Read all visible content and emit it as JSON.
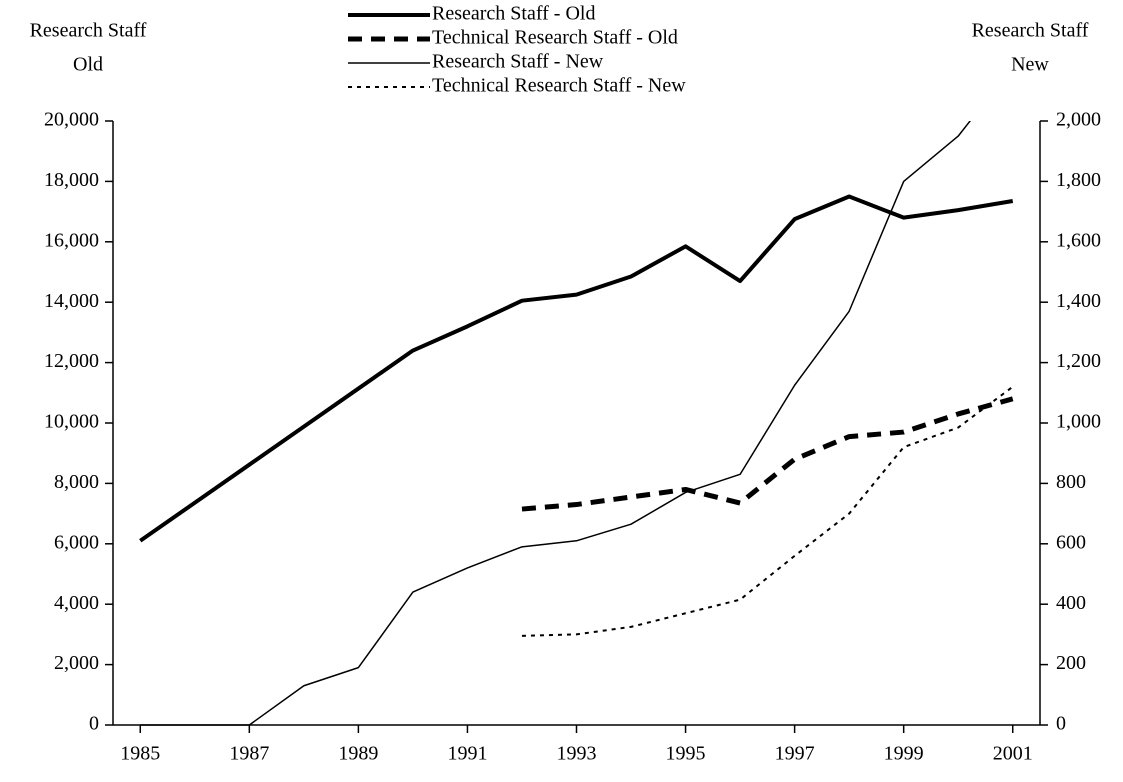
{
  "chart_data": {
    "type": "line",
    "ylabel": [
      "Research Staff",
      "Old"
    ],
    "y2label": [
      "Research Staff",
      "New"
    ],
    "x": [
      1985,
      1986,
      1987,
      1988,
      1989,
      1990,
      1991,
      1992,
      1993,
      1994,
      1995,
      1996,
      1997,
      1998,
      1999,
      2000,
      2001
    ],
    "xlim": [
      1984.5,
      2001.5
    ],
    "xticks": [
      1985,
      1987,
      1989,
      1991,
      1993,
      1995,
      1997,
      1999,
      2001
    ],
    "ylim": [
      0,
      20000
    ],
    "yticks": [
      0,
      {
        "value": 2000,
        "label": "2,000"
      },
      {
        "value": 4000,
        "label": "4,000"
      },
      {
        "value": 6000,
        "label": "6,000"
      },
      {
        "value": 8000,
        "label": "8,000"
      },
      {
        "value": 10000,
        "label": "10,000"
      },
      {
        "value": 12000,
        "label": "12,000"
      },
      {
        "value": 14000,
        "label": "14,000"
      },
      {
        "value": 16000,
        "label": "16,000"
      },
      {
        "value": 18000,
        "label": "18,000"
      },
      {
        "value": 20000,
        "label": "20,000"
      }
    ],
    "y2lim": [
      0,
      2000
    ],
    "y2ticks": [
      0,
      200,
      400,
      600,
      800,
      {
        "value": 1000,
        "label": "1,000"
      },
      {
        "value": 1200,
        "label": "1,200"
      },
      {
        "value": 1400,
        "label": "1,400"
      },
      {
        "value": 1600,
        "label": "1,600"
      },
      {
        "value": 1800,
        "label": "1,800"
      },
      {
        "value": 2000,
        "label": "2,000"
      }
    ],
    "series": [
      {
        "name": "Research Staff - Old",
        "color": "#000000",
        "style": "solid",
        "width": 4,
        "values": [
          6100,
          7360,
          8620,
          9880,
          11140,
          12400,
          13200,
          14050,
          14250,
          14850,
          15850,
          14700,
          16750,
          17500,
          16800,
          17050,
          17350
        ]
      },
      {
        "name": "Technical Research Staff - Old",
        "color": "#000000",
        "style": "dashed",
        "width": 5,
        "values": [
          null,
          null,
          null,
          null,
          null,
          null,
          null,
          7150,
          7300,
          7550,
          7800,
          7350,
          8800,
          9550,
          9700,
          10300,
          10800
        ]
      },
      {
        "name": "Research Staff - New",
        "color": "#000000",
        "style": "solid",
        "width": 1.5,
        "axis": "y2",
        "values": [
          0,
          0,
          0,
          130,
          190,
          440,
          520,
          590,
          610,
          665,
          770,
          830,
          1125,
          1370,
          1800,
          1950,
          2180
        ]
      },
      {
        "name": "Technical Research Staff - New",
        "color": "#000000",
        "style": "dotted",
        "width": 2,
        "axis": "y2",
        "values": [
          null,
          null,
          null,
          null,
          null,
          null,
          null,
          295,
          300,
          325,
          370,
          415,
          560,
          700,
          920,
          985,
          1120
        ]
      }
    ]
  }
}
